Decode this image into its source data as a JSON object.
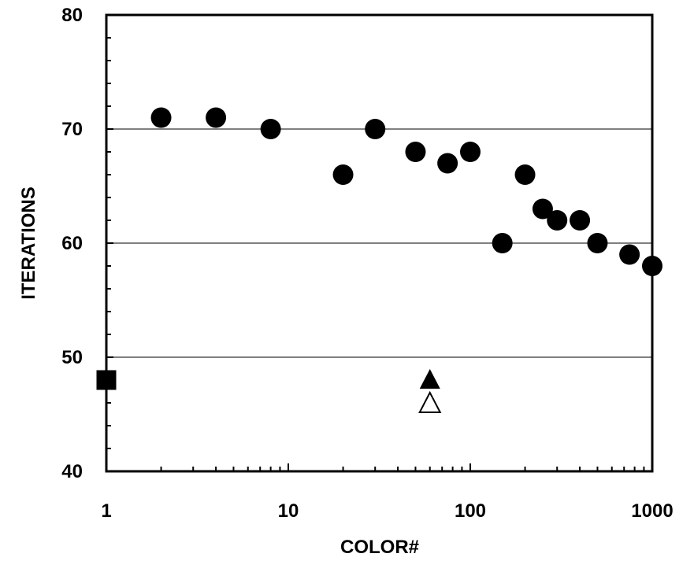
{
  "chart_data": {
    "type": "scatter",
    "title": "",
    "xlabel": "COLOR#",
    "ylabel": "ITERATIONS",
    "xscale": "log",
    "xlim": [
      1,
      1000
    ],
    "ylim": [
      40,
      80
    ],
    "x_ticks": [
      "1",
      "10",
      "100",
      "1000"
    ],
    "y_ticks": [
      "40",
      "50",
      "60",
      "70",
      "80"
    ],
    "gridlines_y": [
      50,
      60,
      70
    ],
    "grid": "horizontal-major",
    "legend": "none",
    "series": [
      {
        "marker": "filled-circle",
        "color": "#000000",
        "points": [
          {
            "x": 2,
            "y": 71
          },
          {
            "x": 4,
            "y": 71
          },
          {
            "x": 8,
            "y": 70
          },
          {
            "x": 20,
            "y": 66
          },
          {
            "x": 30,
            "y": 70
          },
          {
            "x": 50,
            "y": 68
          },
          {
            "x": 75,
            "y": 67
          },
          {
            "x": 100,
            "y": 68
          },
          {
            "x": 150,
            "y": 60
          },
          {
            "x": 200,
            "y": 66
          },
          {
            "x": 250,
            "y": 63
          },
          {
            "x": 300,
            "y": 62
          },
          {
            "x": 400,
            "y": 62
          },
          {
            "x": 500,
            "y": 60
          },
          {
            "x": 750,
            "y": 59
          },
          {
            "x": 1000,
            "y": 58
          }
        ]
      },
      {
        "marker": "filled-square",
        "color": "#000000",
        "points": [
          {
            "x": 1,
            "y": 48
          }
        ]
      },
      {
        "marker": "filled-triangle",
        "color": "#000000",
        "points": [
          {
            "x": 60,
            "y": 48
          }
        ]
      },
      {
        "marker": "open-triangle",
        "color": "#000000",
        "points": [
          {
            "x": 60,
            "y": 46
          }
        ]
      }
    ]
  }
}
